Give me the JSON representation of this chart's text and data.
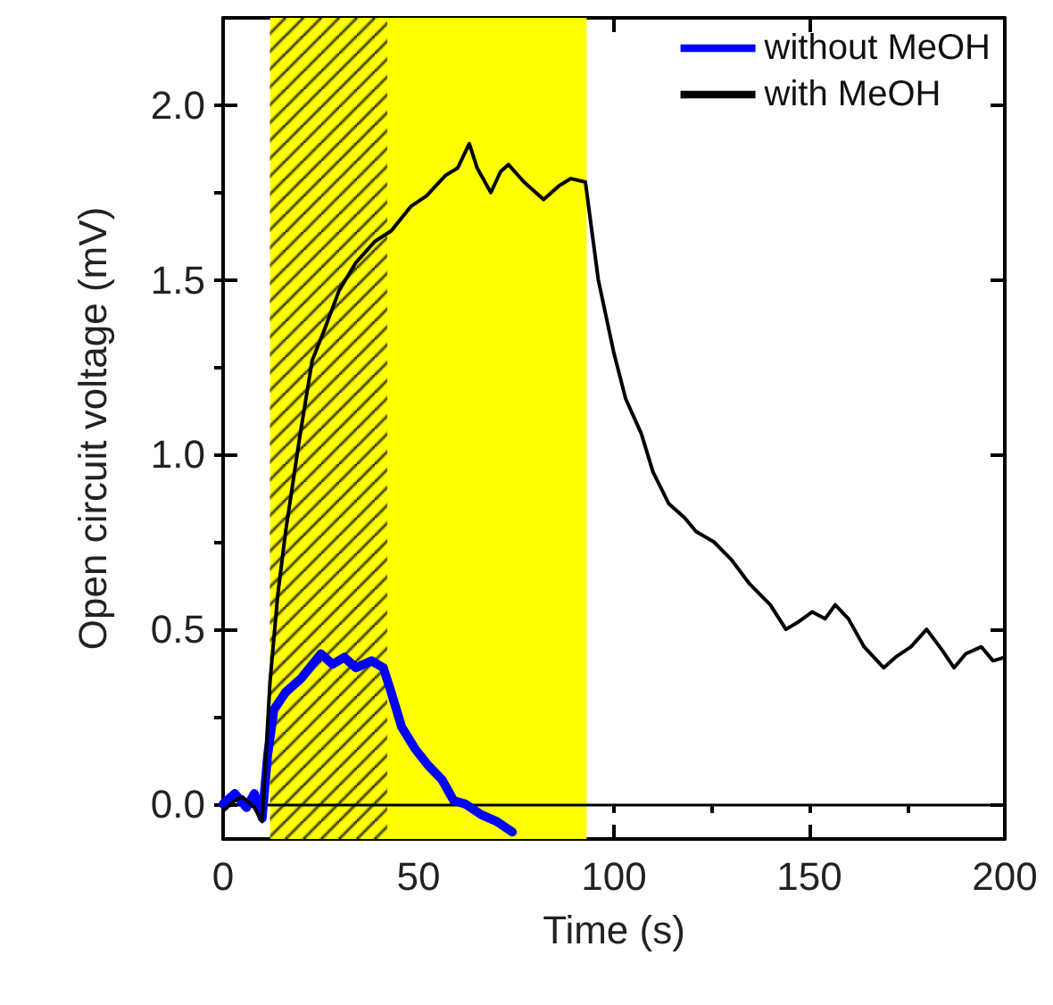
{
  "chart_data": {
    "type": "line",
    "xlabel": "Time (s)",
    "ylabel": "Open circuit voltage (mV)",
    "xlim": [
      0,
      200
    ],
    "xticks": [
      0,
      50,
      100,
      150,
      200
    ],
    "ylim": [
      -0.1,
      2.25
    ],
    "yticks": [
      {
        "value": 0,
        "label": "0.0"
      },
      0.5,
      {
        "value": 1,
        "label": "1.0"
      },
      1.5,
      {
        "value": 2,
        "label": "2.0"
      }
    ],
    "grid": false,
    "legend": "top right",
    "marker": "none",
    "line_style": "solid",
    "series": [
      {
        "name": "without MeOH",
        "color": "#0000ff",
        "x": [
          0,
          3,
          6,
          8,
          10,
          11.4,
          13,
          16,
          20,
          25,
          28,
          31,
          34,
          38,
          41,
          43,
          45.7,
          49,
          52.5,
          56,
          59,
          62,
          66,
          70,
          74
        ],
        "values": [
          0.0,
          0.03,
          -0.01,
          0.03,
          -0.04,
          0.14,
          0.27,
          0.32,
          0.36,
          0.43,
          0.4,
          0.42,
          0.39,
          0.41,
          0.39,
          0.32,
          0.22,
          0.16,
          0.11,
          0.07,
          0.01,
          0.0,
          -0.03,
          -0.05,
          -0.08
        ]
      },
      {
        "name": "with MeOH",
        "color": "#000000",
        "x": [
          0,
          3,
          5,
          8,
          10,
          12,
          14,
          16,
          19.6,
          22.8,
          26,
          29.7,
          34,
          38.8,
          43,
          48,
          52,
          57,
          60,
          63,
          65,
          68.5,
          71,
          73,
          77,
          82,
          86,
          89,
          92.7,
          96,
          100,
          103,
          107,
          110,
          114,
          118,
          121,
          125.6,
          130,
          134.7,
          140,
          144,
          147,
          150.7,
          154,
          156.6,
          160,
          164,
          169,
          172,
          176,
          180,
          184,
          187,
          190,
          194,
          197,
          200
        ],
        "values": [
          -0.02,
          0.01,
          0.02,
          -0.01,
          -0.05,
          0.35,
          0.6,
          0.78,
          1.05,
          1.27,
          1.36,
          1.47,
          1.55,
          1.61,
          1.64,
          1.71,
          1.74,
          1.8,
          1.82,
          1.89,
          1.82,
          1.75,
          1.81,
          1.83,
          1.78,
          1.73,
          1.77,
          1.79,
          1.78,
          1.5,
          1.29,
          1.16,
          1.06,
          0.95,
          0.86,
          0.82,
          0.78,
          0.75,
          0.7,
          0.63,
          0.57,
          0.5,
          0.52,
          0.55,
          0.53,
          0.57,
          0.53,
          0.45,
          0.39,
          0.42,
          0.45,
          0.5,
          0.44,
          0.39,
          0.43,
          0.45,
          0.41,
          0.42
        ]
      }
    ],
    "bands": [
      {
        "axis": "x",
        "from": 12,
        "to": 93,
        "color": "#ffff00"
      },
      {
        "axis": "x",
        "from": 12,
        "to": 42,
        "color": "#000000"
      }
    ],
    "ref_lines": [
      {
        "axis": "y",
        "value": 0,
        "color": "#000000",
        "line_style": "solid"
      }
    ]
  }
}
